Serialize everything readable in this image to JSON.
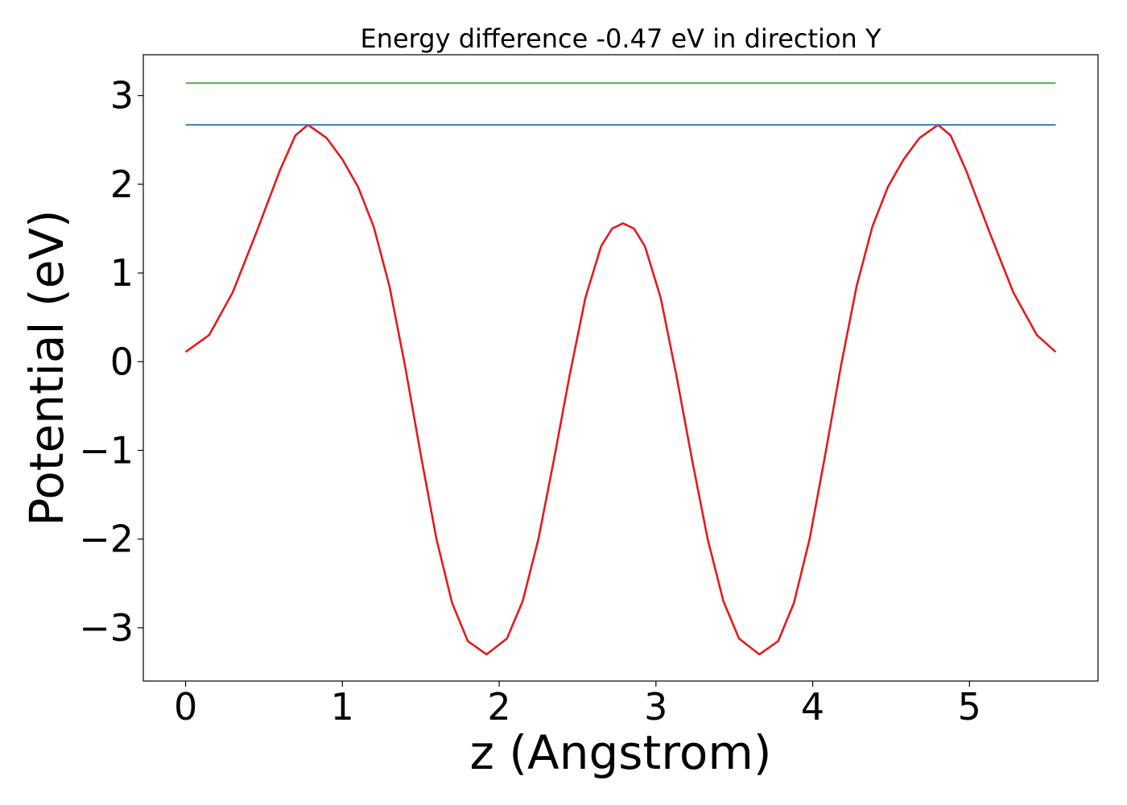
{
  "chart_data": {
    "type": "line",
    "title": "Energy difference -0.47 eV in direction Y",
    "xlabel": "z (Angstrom)",
    "ylabel": "Potential (eV)",
    "xlim": [
      -0.27,
      5.82
    ],
    "ylim": [
      -3.6,
      3.46
    ],
    "grid": false,
    "x_ticks": [
      {
        "value": 0,
        "label": "0"
      },
      {
        "value": 1,
        "label": "1"
      },
      {
        "value": 2,
        "label": "2"
      },
      {
        "value": 3,
        "label": "3"
      },
      {
        "value": 4,
        "label": "4"
      },
      {
        "value": 5,
        "label": "5"
      }
    ],
    "y_ticks": [
      {
        "value": -3,
        "label": "−3"
      },
      {
        "value": -2,
        "label": "−2"
      },
      {
        "value": -1,
        "label": "−1"
      },
      {
        "value": 0,
        "label": "0"
      },
      {
        "value": 1,
        "label": "1"
      },
      {
        "value": 2,
        "label": "2"
      },
      {
        "value": 3,
        "label": "3"
      }
    ],
    "series": [
      {
        "color": "#e41a1c",
        "points": [
          [
            0.0,
            0.11
          ],
          [
            0.15,
            0.3
          ],
          [
            0.3,
            0.78
          ],
          [
            0.45,
            1.45
          ],
          [
            0.6,
            2.15
          ],
          [
            0.7,
            2.55
          ],
          [
            0.78,
            2.67
          ],
          [
            0.9,
            2.52
          ],
          [
            1.0,
            2.28
          ],
          [
            1.1,
            1.97
          ],
          [
            1.2,
            1.52
          ],
          [
            1.3,
            0.85
          ],
          [
            1.4,
            -0.05
          ],
          [
            1.5,
            -1.05
          ],
          [
            1.6,
            -2.0
          ],
          [
            1.7,
            -2.72
          ],
          [
            1.8,
            -3.15
          ],
          [
            1.92,
            -3.3
          ],
          [
            2.05,
            -3.12
          ],
          [
            2.15,
            -2.7
          ],
          [
            2.25,
            -2.0
          ],
          [
            2.35,
            -1.1
          ],
          [
            2.45,
            -0.15
          ],
          [
            2.55,
            0.72
          ],
          [
            2.65,
            1.3
          ],
          [
            2.72,
            1.5
          ],
          [
            2.79,
            1.56
          ],
          [
            2.86,
            1.5
          ],
          [
            2.93,
            1.3
          ],
          [
            3.03,
            0.72
          ],
          [
            3.13,
            -0.15
          ],
          [
            3.23,
            -1.1
          ],
          [
            3.33,
            -2.0
          ],
          [
            3.43,
            -2.7
          ],
          [
            3.53,
            -3.12
          ],
          [
            3.66,
            -3.3
          ],
          [
            3.78,
            -3.15
          ],
          [
            3.88,
            -2.72
          ],
          [
            3.98,
            -2.0
          ],
          [
            4.08,
            -1.05
          ],
          [
            4.18,
            -0.05
          ],
          [
            4.28,
            0.85
          ],
          [
            4.38,
            1.52
          ],
          [
            4.48,
            1.97
          ],
          [
            4.58,
            2.28
          ],
          [
            4.68,
            2.52
          ],
          [
            4.8,
            2.67
          ],
          [
            4.88,
            2.55
          ],
          [
            4.98,
            2.15
          ],
          [
            5.13,
            1.45
          ],
          [
            5.28,
            0.78
          ],
          [
            5.43,
            0.3
          ],
          [
            5.55,
            0.11
          ]
        ]
      },
      {
        "color": "#377eb8",
        "points": [
          [
            0.0,
            2.67
          ],
          [
            5.55,
            2.67
          ]
        ]
      },
      {
        "color": "#4daf4a",
        "points": [
          [
            0.0,
            3.14
          ],
          [
            5.55,
            3.14
          ]
        ]
      }
    ]
  }
}
